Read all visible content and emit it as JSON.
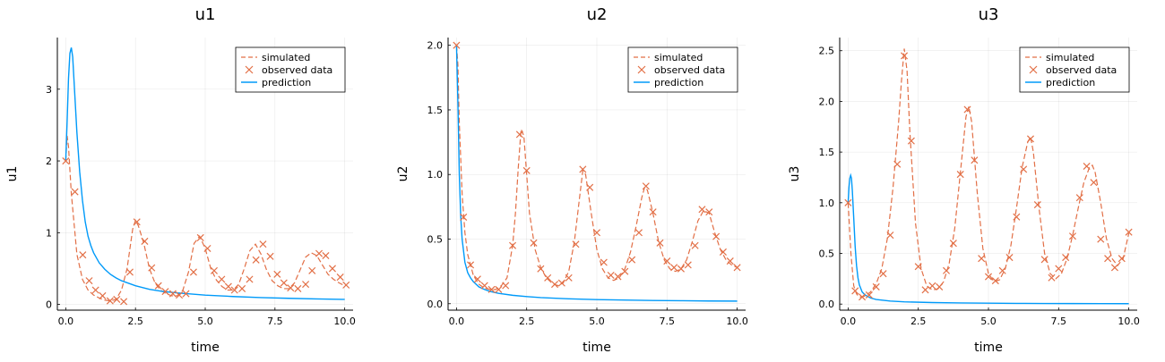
{
  "chart_data": [
    {
      "type": "line",
      "title": "u1",
      "xlabel": "time",
      "ylabel": "u1",
      "xlim": [
        -0.3,
        10.3
      ],
      "ylim": [
        -0.08,
        3.72
      ],
      "xticks": [
        0.0,
        2.5,
        5.0,
        7.5,
        10.0
      ],
      "xtick_labels": [
        "0.0",
        "2.5",
        "5.0",
        "7.5",
        "10.0"
      ],
      "yticks": [
        0,
        1,
        2,
        3
      ],
      "ytick_labels": [
        "0",
        "1",
        "2",
        "3"
      ],
      "grid": true,
      "legend_position": "top-right",
      "colors": {
        "simulated": "#e26f46",
        "observed": "#e26f46",
        "prediction": "#009af9"
      },
      "series": [
        {
          "name": "simulated",
          "style": "dashed",
          "x": [
            0.0,
            0.05,
            0.1,
            0.2,
            0.4,
            0.6,
            0.8,
            1.0,
            1.2,
            1.4,
            1.6,
            1.8,
            2.0,
            2.2,
            2.4,
            2.5,
            2.6,
            2.8,
            3.0,
            3.2,
            3.4,
            3.6,
            3.8,
            4.0,
            4.2,
            4.4,
            4.6,
            4.8,
            5.0,
            5.2,
            5.4,
            5.6,
            5.8,
            6.0,
            6.2,
            6.4,
            6.6,
            6.8,
            7.0,
            7.2,
            7.4,
            7.6,
            7.8,
            8.0,
            8.2,
            8.4,
            8.6,
            8.8,
            9.0,
            9.2,
            9.4,
            9.6,
            9.8,
            10.0
          ],
          "y": [
            2.0,
            2.35,
            2.2,
            1.55,
            0.7,
            0.35,
            0.2,
            0.13,
            0.09,
            0.06,
            0.05,
            0.07,
            0.2,
            0.5,
            1.05,
            1.17,
            1.1,
            0.85,
            0.5,
            0.3,
            0.2,
            0.15,
            0.12,
            0.12,
            0.2,
            0.45,
            0.85,
            0.95,
            0.78,
            0.5,
            0.34,
            0.25,
            0.2,
            0.2,
            0.28,
            0.5,
            0.75,
            0.84,
            0.7,
            0.48,
            0.33,
            0.26,
            0.22,
            0.22,
            0.3,
            0.48,
            0.66,
            0.72,
            0.68,
            0.55,
            0.42,
            0.35,
            0.3,
            0.26
          ]
        },
        {
          "name": "observed data",
          "style": "markers",
          "x": [
            0.0,
            0.33,
            0.61,
            0.84,
            1.07,
            1.32,
            1.59,
            1.83,
            2.08,
            2.3,
            2.55,
            2.83,
            3.08,
            3.32,
            3.57,
            3.84,
            4.07,
            4.31,
            4.58,
            4.83,
            5.08,
            5.32,
            5.59,
            5.83,
            6.05,
            6.32,
            6.59,
            6.82,
            7.07,
            7.33,
            7.58,
            7.82,
            8.06,
            8.32,
            8.6,
            8.83,
            9.08,
            9.32,
            9.56,
            9.84,
            10.05
          ],
          "y": [
            2.0,
            1.57,
            0.69,
            0.33,
            0.2,
            0.12,
            0.05,
            0.07,
            0.04,
            0.45,
            1.15,
            0.88,
            0.51,
            0.26,
            0.18,
            0.15,
            0.13,
            0.15,
            0.45,
            0.93,
            0.78,
            0.47,
            0.35,
            0.25,
            0.2,
            0.22,
            0.35,
            0.62,
            0.84,
            0.67,
            0.42,
            0.3,
            0.23,
            0.22,
            0.28,
            0.47,
            0.71,
            0.68,
            0.5,
            0.38,
            0.27
          ]
        },
        {
          "name": "prediction",
          "style": "solid",
          "x": [
            0.0,
            0.05,
            0.1,
            0.15,
            0.2,
            0.25,
            0.3,
            0.35,
            0.4,
            0.5,
            0.6,
            0.7,
            0.8,
            0.9,
            1.0,
            1.2,
            1.4,
            1.6,
            1.8,
            2.0,
            2.5,
            3.0,
            3.5,
            4.0,
            5.0,
            6.0,
            7.0,
            8.0,
            9.0,
            10.0
          ],
          "y": [
            2.0,
            2.55,
            3.15,
            3.5,
            3.58,
            3.45,
            3.1,
            2.75,
            2.4,
            1.85,
            1.45,
            1.15,
            0.95,
            0.82,
            0.72,
            0.58,
            0.49,
            0.42,
            0.37,
            0.33,
            0.26,
            0.21,
            0.18,
            0.16,
            0.13,
            0.11,
            0.095,
            0.085,
            0.077,
            0.07
          ]
        }
      ]
    },
    {
      "type": "line",
      "title": "u2",
      "xlabel": "time",
      "ylabel": "u2",
      "xlim": [
        -0.3,
        10.3
      ],
      "ylim": [
        -0.05,
        2.06
      ],
      "xticks": [
        0.0,
        2.5,
        5.0,
        7.5,
        10.0
      ],
      "xtick_labels": [
        "0.0",
        "2.5",
        "5.0",
        "7.5",
        "10.0"
      ],
      "yticks": [
        0.0,
        0.5,
        1.0,
        1.5,
        2.0
      ],
      "ytick_labels": [
        "0.0",
        "0.5",
        "1.0",
        "1.5",
        "2.0"
      ],
      "grid": true,
      "legend_position": "top-right",
      "colors": {
        "simulated": "#e26f46",
        "observed": "#e26f46",
        "prediction": "#009af9"
      },
      "series": [
        {
          "name": "simulated",
          "style": "dashed",
          "x": [
            0.0,
            0.05,
            0.1,
            0.2,
            0.3,
            0.4,
            0.6,
            0.8,
            1.0,
            1.2,
            1.4,
            1.6,
            1.8,
            2.0,
            2.1,
            2.2,
            2.3,
            2.4,
            2.6,
            2.8,
            3.0,
            3.2,
            3.4,
            3.6,
            3.8,
            4.0,
            4.2,
            4.4,
            4.5,
            4.6,
            4.8,
            5.0,
            5.2,
            5.4,
            5.6,
            5.8,
            6.0,
            6.2,
            6.4,
            6.6,
            6.7,
            6.8,
            7.0,
            7.2,
            7.4,
            7.6,
            7.8,
            8.0,
            8.2,
            8.4,
            8.6,
            8.8,
            9.0,
            9.2,
            9.4,
            9.6,
            9.8,
            10.0
          ],
          "y": [
            2.0,
            1.85,
            1.4,
            0.85,
            0.55,
            0.38,
            0.22,
            0.15,
            0.12,
            0.11,
            0.11,
            0.14,
            0.2,
            0.45,
            0.7,
            1.05,
            1.35,
            1.3,
            0.7,
            0.42,
            0.28,
            0.2,
            0.16,
            0.14,
            0.16,
            0.25,
            0.48,
            0.85,
            1.03,
            1.0,
            0.7,
            0.42,
            0.27,
            0.2,
            0.18,
            0.2,
            0.27,
            0.4,
            0.6,
            0.82,
            0.9,
            0.88,
            0.7,
            0.48,
            0.34,
            0.27,
            0.25,
            0.27,
            0.34,
            0.48,
            0.64,
            0.72,
            0.7,
            0.55,
            0.42,
            0.34,
            0.3,
            0.28
          ]
        },
        {
          "name": "observed data",
          "style": "markers",
          "x": [
            0.0,
            0.25,
            0.5,
            0.75,
            1.0,
            1.25,
            1.5,
            1.75,
            2.0,
            2.25,
            2.5,
            2.75,
            3.0,
            3.25,
            3.5,
            3.75,
            4.0,
            4.25,
            4.5,
            4.75,
            5.0,
            5.25,
            5.5,
            5.75,
            6.0,
            6.25,
            6.5,
            6.75,
            7.0,
            7.25,
            7.5,
            7.75,
            8.0,
            8.25,
            8.5,
            8.75,
            9.0,
            9.25,
            9.5,
            9.75,
            10.0
          ],
          "y": [
            2.0,
            0.67,
            0.3,
            0.19,
            0.14,
            0.11,
            0.11,
            0.14,
            0.45,
            1.31,
            1.03,
            0.47,
            0.27,
            0.2,
            0.15,
            0.16,
            0.2,
            0.46,
            1.04,
            0.9,
            0.55,
            0.32,
            0.22,
            0.21,
            0.25,
            0.34,
            0.55,
            0.91,
            0.71,
            0.47,
            0.33,
            0.28,
            0.27,
            0.3,
            0.45,
            0.73,
            0.71,
            0.52,
            0.4,
            0.33,
            0.28
          ]
        },
        {
          "name": "prediction",
          "style": "solid",
          "x": [
            0.0,
            0.05,
            0.1,
            0.15,
            0.2,
            0.3,
            0.4,
            0.5,
            0.6,
            0.8,
            1.0,
            1.2,
            1.5,
            2.0,
            2.5,
            3.0,
            4.0,
            5.0,
            6.0,
            7.0,
            8.0,
            9.0,
            10.0
          ],
          "y": [
            2.0,
            1.55,
            1.0,
            0.68,
            0.5,
            0.32,
            0.24,
            0.2,
            0.17,
            0.13,
            0.11,
            0.095,
            0.08,
            0.065,
            0.055,
            0.047,
            0.038,
            0.032,
            0.028,
            0.025,
            0.023,
            0.021,
            0.02
          ]
        }
      ]
    },
    {
      "type": "line",
      "title": "u3",
      "xlabel": "time",
      "ylabel": "u3",
      "xlim": [
        -0.3,
        10.3
      ],
      "ylim": [
        -0.06,
        2.63
      ],
      "xticks": [
        0.0,
        2.5,
        5.0,
        7.5,
        10.0
      ],
      "xtick_labels": [
        "0.0",
        "2.5",
        "5.0",
        "7.5",
        "10.0"
      ],
      "yticks": [
        0.0,
        0.5,
        1.0,
        1.5,
        2.0,
        2.5
      ],
      "ytick_labels": [
        "0.0",
        "0.5",
        "1.0",
        "1.5",
        "2.0",
        "2.5"
      ],
      "grid": true,
      "legend_position": "top-right",
      "colors": {
        "simulated": "#e26f46",
        "observed": "#e26f46",
        "prediction": "#009af9"
      },
      "series": [
        {
          "name": "simulated",
          "style": "dashed",
          "x": [
            0.0,
            0.1,
            0.2,
            0.3,
            0.4,
            0.5,
            0.6,
            0.8,
            1.0,
            1.2,
            1.4,
            1.6,
            1.8,
            1.9,
            2.0,
            2.1,
            2.2,
            2.4,
            2.6,
            2.8,
            3.0,
            3.2,
            3.4,
            3.6,
            3.8,
            4.0,
            4.2,
            4.3,
            4.4,
            4.6,
            4.8,
            5.0,
            5.2,
            5.4,
            5.6,
            5.8,
            6.0,
            6.2,
            6.4,
            6.5,
            6.6,
            6.8,
            7.0,
            7.2,
            7.4,
            7.6,
            7.8,
            8.0,
            8.2,
            8.4,
            8.6,
            8.7,
            8.8,
            9.0,
            9.2,
            9.4,
            9.6,
            9.8,
            10.0
          ],
          "y": [
            1.0,
            0.5,
            0.18,
            0.1,
            0.07,
            0.07,
            0.08,
            0.12,
            0.2,
            0.35,
            0.65,
            1.15,
            1.8,
            2.2,
            2.52,
            2.3,
            1.7,
            0.8,
            0.35,
            0.18,
            0.14,
            0.15,
            0.22,
            0.4,
            0.75,
            1.3,
            1.85,
            1.95,
            1.8,
            1.1,
            0.55,
            0.3,
            0.22,
            0.24,
            0.35,
            0.58,
            0.95,
            1.35,
            1.6,
            1.65,
            1.5,
            0.95,
            0.5,
            0.3,
            0.25,
            0.3,
            0.45,
            0.68,
            0.95,
            1.2,
            1.35,
            1.37,
            1.3,
            1.0,
            0.65,
            0.45,
            0.38,
            0.45,
            0.7
          ]
        },
        {
          "name": "observed data",
          "style": "markers",
          "x": [
            0.0,
            0.25,
            0.5,
            0.75,
            1.0,
            1.25,
            1.5,
            1.75,
            2.0,
            2.25,
            2.5,
            2.75,
            3.0,
            3.25,
            3.5,
            3.75,
            4.0,
            4.25,
            4.5,
            4.75,
            5.0,
            5.25,
            5.5,
            5.75,
            6.0,
            6.25,
            6.5,
            6.75,
            7.0,
            7.25,
            7.5,
            7.75,
            8.0,
            8.25,
            8.5,
            8.75,
            9.0,
            9.25,
            9.5,
            9.75,
            10.0
          ],
          "y": [
            1.0,
            0.13,
            0.07,
            0.09,
            0.17,
            0.3,
            0.68,
            1.38,
            2.45,
            1.61,
            0.37,
            0.14,
            0.18,
            0.17,
            0.33,
            0.6,
            1.28,
            1.92,
            1.42,
            0.45,
            0.27,
            0.23,
            0.33,
            0.46,
            0.86,
            1.33,
            1.63,
            0.98,
            0.44,
            0.26,
            0.35,
            0.46,
            0.67,
            1.05,
            1.36,
            1.2,
            0.64,
            0.45,
            0.36,
            0.45,
            0.71
          ]
        },
        {
          "name": "prediction",
          "style": "solid",
          "x": [
            0.0,
            0.03,
            0.06,
            0.09,
            0.12,
            0.15,
            0.2,
            0.25,
            0.3,
            0.35,
            0.4,
            0.5,
            0.6,
            0.8,
            1.0,
            1.5,
            2.0,
            3.0,
            4.0,
            5.0,
            6.0,
            7.0,
            8.0,
            9.0,
            10.0
          ],
          "y": [
            1.0,
            1.15,
            1.24,
            1.27,
            1.24,
            1.12,
            0.85,
            0.57,
            0.38,
            0.26,
            0.19,
            0.12,
            0.09,
            0.06,
            0.045,
            0.03,
            0.022,
            0.015,
            0.011,
            0.009,
            0.007,
            0.006,
            0.005,
            0.0045,
            0.004
          ]
        }
      ]
    }
  ],
  "legend": {
    "simulated_label": "simulated",
    "observed_label": "observed data",
    "prediction_label": "prediction"
  }
}
